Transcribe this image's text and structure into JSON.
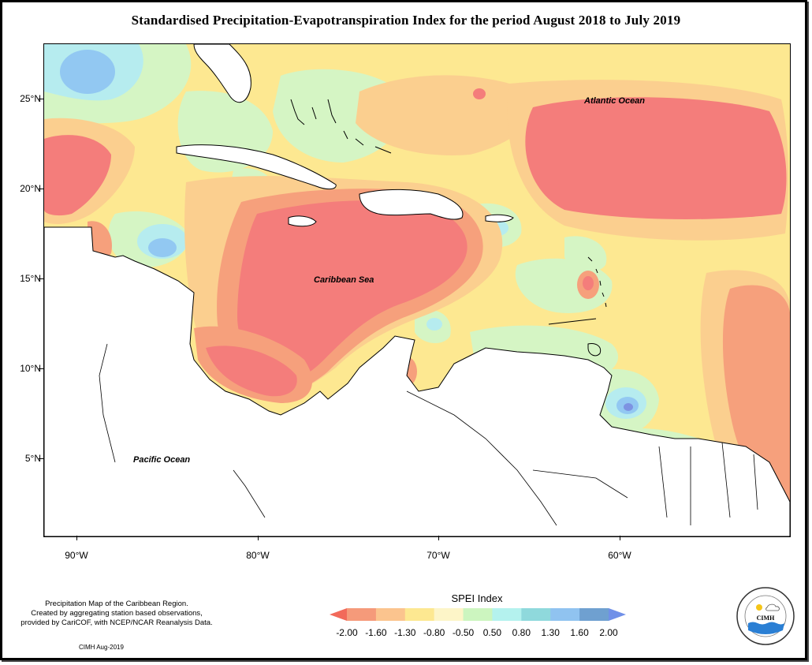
{
  "title": "Standardised Precipitation-Evapotranspiration Index for the period August 2018 to July 2019",
  "axes": {
    "y_labels": [
      "25°N",
      "20°N",
      "15°N",
      "10°N",
      "5°N"
    ],
    "x_labels": [
      "90°W",
      "80°W",
      "70°W",
      "60°W"
    ]
  },
  "map_labels": {
    "atlantic": "Atlantic Ocean",
    "caribbean": "Caribbean Sea",
    "pacific": "Pacific Ocean"
  },
  "note": {
    "line1": "Precipitation Map of the Caribbean Region.",
    "line2": "Created by aggregating station based observations,",
    "line3": "provided by CariCOF, with NCEP/NCAR Reanalysis Data."
  },
  "credit": "CIMH Aug-2019",
  "legend": {
    "title": "SPEI Index",
    "ticks": [
      "-2.00",
      "-1.60",
      "-1.30",
      "-0.80",
      "-0.50",
      "0.50",
      "0.80",
      "1.30",
      "1.60",
      "2.00"
    ],
    "colors": [
      "#f26a5a",
      "#f59a7a",
      "#fbc48e",
      "#fde891",
      "#fdf5c8",
      "#ccf5bf",
      "#b4f2ee",
      "#8fd9dc",
      "#90c3f0",
      "#6fa0d0",
      "#7090e8"
    ]
  },
  "logo": {
    "name": "CIMH",
    "colors": {
      "sun": "#f5c518",
      "water": "#2a7fd4"
    }
  },
  "colors": {
    "dry_extreme": "#f47d7b",
    "dry_severe": "#f6a07c",
    "dry_moderate": "#fbcf8f",
    "near_normal": "#fde891",
    "wet_mild": "#d5f5c4",
    "wet_moderate": "#b6ecef",
    "wet_severe": "#92c8f2",
    "wet_extreme": "#7d93e2",
    "land": "#ffffff"
  }
}
